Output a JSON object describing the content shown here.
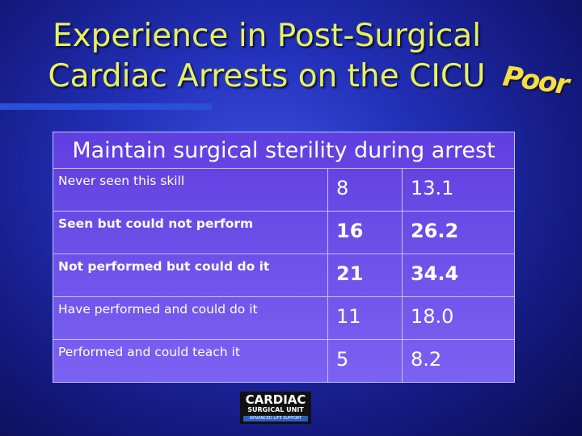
{
  "title": {
    "lines": [
      "Experience in Post-Surgical",
      "Cardiac Arrests on the CICU"
    ]
  },
  "badge": "Poor",
  "table": {
    "header": "Maintain surgical sterility during arrest",
    "rows": [
      [
        "Never seen this skill",
        "8",
        "13.1"
      ],
      [
        "Seen but could not perform",
        "16",
        "26.2"
      ],
      [
        "Not performed but could do it",
        "21",
        "34.4"
      ],
      [
        "Have performed and could do it",
        "11",
        "18.0"
      ],
      [
        "Performed and could teach it",
        "5",
        "8.2"
      ]
    ],
    "bold_rows": [
      1,
      2
    ]
  },
  "logo": {
    "line1": "CARDIAC",
    "line2": "SURGICAL UNIT",
    "line3": "ADVANCED LIFE SUPPORT"
  }
}
